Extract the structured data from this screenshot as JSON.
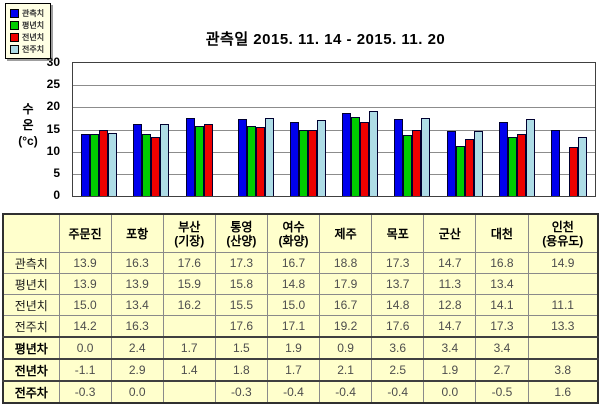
{
  "colors": {
    "observed": "#0000ee",
    "normal_year": "#00cc00",
    "prev_year": "#ee0000",
    "prev_week": "#aedce6",
    "table_bg": "#ffffcc",
    "legend_bg": "#ffffe4"
  },
  "chart_data": {
    "type": "bar",
    "title": "관측일 2015. 11. 14 - 2015. 11. 20",
    "ylabel": "수온(°c)",
    "ylabel_lines": [
      "수",
      "온",
      "(°c)"
    ],
    "ylim": [
      0,
      30
    ],
    "yticks": [
      30,
      25,
      20,
      15,
      10,
      5,
      0
    ],
    "grid": true,
    "legend_position": "top-left",
    "categories": [
      "주문진",
      "포항",
      "부산(기장)",
      "통영(산양)",
      "여수(화양)",
      "제주",
      "목포",
      "군산",
      "대천",
      "인천(용유도)"
    ],
    "series": [
      {
        "key": "observed",
        "name": "관측치",
        "color": "#0000ee",
        "values": [
          13.9,
          16.3,
          17.6,
          17.3,
          16.7,
          18.8,
          17.3,
          14.7,
          16.8,
          14.9
        ]
      },
      {
        "key": "normal-year",
        "name": "평년치",
        "color": "#00cc00",
        "values": [
          13.9,
          13.9,
          15.9,
          15.8,
          14.8,
          17.9,
          13.7,
          11.3,
          13.4,
          null
        ]
      },
      {
        "key": "prev-year",
        "name": "전년치",
        "color": "#ee0000",
        "values": [
          15.0,
          13.4,
          16.2,
          15.5,
          15.0,
          16.7,
          14.8,
          12.8,
          14.1,
          11.1
        ]
      },
      {
        "key": "prev-week",
        "name": "전주치",
        "color": "#aedce6",
        "values": [
          14.2,
          16.3,
          null,
          17.6,
          17.1,
          19.2,
          17.6,
          14.7,
          17.3,
          13.3
        ]
      }
    ]
  },
  "table": {
    "columns": [
      "",
      "주문진",
      "포항",
      "부산\n(기장)",
      "통영\n(산양)",
      "여수\n(화양)",
      "제주",
      "목포",
      "군산",
      "대천",
      "인천\n(용유도)"
    ],
    "rows": [
      {
        "header": "관측치",
        "bold": false,
        "cells": [
          "13.9",
          "16.3",
          "17.6",
          "17.3",
          "16.7",
          "18.8",
          "17.3",
          "14.7",
          "16.8",
          "14.9"
        ]
      },
      {
        "header": "평년치",
        "bold": false,
        "cells": [
          "13.9",
          "13.9",
          "15.9",
          "15.8",
          "14.8",
          "17.9",
          "13.7",
          "11.3",
          "13.4",
          ""
        ]
      },
      {
        "header": "전년치",
        "bold": false,
        "cells": [
          "15.0",
          "13.4",
          "16.2",
          "15.5",
          "15.0",
          "16.7",
          "14.8",
          "12.8",
          "14.1",
          "11.1"
        ]
      },
      {
        "header": "전주치",
        "bold": false,
        "cells": [
          "14.2",
          "16.3",
          "",
          "17.6",
          "17.1",
          "19.2",
          "17.6",
          "14.7",
          "17.3",
          "13.3"
        ]
      },
      {
        "header": "평년차",
        "bold": true,
        "cells": [
          "0.0",
          "2.4",
          "1.7",
          "1.5",
          "1.9",
          "0.9",
          "3.6",
          "3.4",
          "3.4",
          ""
        ]
      },
      {
        "header": "전년차",
        "bold": true,
        "cells": [
          "-1.1",
          "2.9",
          "1.4",
          "1.8",
          "1.7",
          "2.1",
          "2.5",
          "1.9",
          "2.7",
          "3.8"
        ]
      },
      {
        "header": "전주차",
        "bold": true,
        "cells": [
          "-0.3",
          "0.0",
          "",
          "-0.3",
          "-0.4",
          "-0.4",
          "-0.4",
          "0.0",
          "-0.5",
          "1.6"
        ]
      }
    ]
  }
}
